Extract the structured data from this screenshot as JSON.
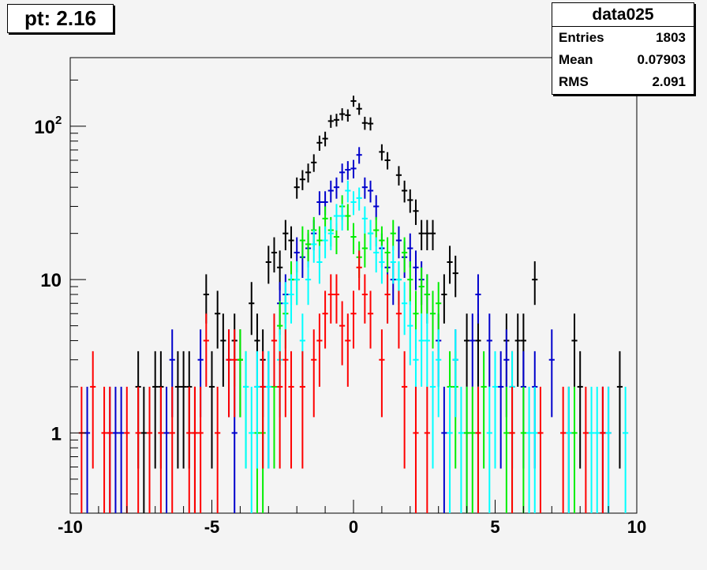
{
  "title": "pt: 2.16",
  "stats": {
    "name": "data025",
    "rows": [
      {
        "label": "Entries",
        "value": "1803"
      },
      {
        "label": "Mean",
        "value": "0.07903"
      },
      {
        "label": "RMS",
        "value": "2.091"
      }
    ]
  },
  "chart_data": {
    "type": "scatter",
    "title": "pt: 2.16",
    "xlabel": "",
    "ylabel": "",
    "xlim": [
      -10,
      10
    ],
    "ylim": [
      0.3,
      280
    ],
    "yscale": "log",
    "x_ticks": [
      "-10",
      "-5",
      "0",
      "5",
      "10"
    ],
    "y_ticks": [
      "1",
      "10",
      "10^2"
    ],
    "series": [
      {
        "color": "#000000",
        "points": [
          [
            -7.6,
            2
          ],
          [
            -7.4,
            1
          ],
          [
            -7.0,
            2
          ],
          [
            -6.8,
            2
          ],
          [
            -6.2,
            2
          ],
          [
            -6.0,
            2
          ],
          [
            -5.8,
            2
          ],
          [
            -5.6,
            1
          ],
          [
            -5.2,
            8
          ],
          [
            -5.0,
            2
          ],
          [
            -4.8,
            6
          ],
          [
            -4.6,
            4
          ],
          [
            -4.2,
            4
          ],
          [
            -4.0,
            3
          ],
          [
            -3.6,
            7
          ],
          [
            -3.4,
            4
          ],
          [
            -3.2,
            3
          ],
          [
            -3.0,
            13
          ],
          [
            -2.8,
            15
          ],
          [
            -2.6,
            12
          ],
          [
            -2.4,
            20
          ],
          [
            -2.2,
            18
          ],
          [
            -2.0,
            40
          ],
          [
            -1.8,
            45
          ],
          [
            -1.6,
            50
          ],
          [
            -1.4,
            58
          ],
          [
            -1.2,
            78
          ],
          [
            -1.0,
            83
          ],
          [
            -0.8,
            108
          ],
          [
            -0.6,
            110
          ],
          [
            -0.4,
            120
          ],
          [
            -0.2,
            118
          ],
          [
            0.0,
            146
          ],
          [
            0.2,
            130
          ],
          [
            0.4,
            105
          ],
          [
            0.6,
            104
          ],
          [
            1.0,
            68
          ],
          [
            1.2,
            60
          ],
          [
            1.6,
            48
          ],
          [
            1.8,
            38
          ],
          [
            2.0,
            33
          ],
          [
            2.2,
            28
          ],
          [
            2.4,
            20
          ],
          [
            2.6,
            20
          ],
          [
            2.8,
            20
          ],
          [
            3.2,
            8
          ],
          [
            3.4,
            13
          ],
          [
            3.6,
            11
          ],
          [
            4.0,
            4
          ],
          [
            4.4,
            4
          ],
          [
            5.4,
            4
          ],
          [
            5.6,
            2
          ],
          [
            5.8,
            4
          ],
          [
            6.0,
            4
          ],
          [
            6.4,
            10
          ],
          [
            7.8,
            4
          ],
          [
            7.6,
            1
          ],
          [
            8.0,
            2
          ],
          [
            8.8,
            1
          ],
          [
            9.4,
            2
          ]
        ]
      },
      {
        "color": "#0000cc",
        "points": [
          [
            -9.4,
            1
          ],
          [
            -8.6,
            1
          ],
          [
            -8.4,
            1
          ],
          [
            -8.2,
            1
          ],
          [
            -6.6,
            1
          ],
          [
            -6.4,
            3
          ],
          [
            -5.4,
            3
          ],
          [
            -4.4,
            3
          ],
          [
            -4.2,
            1
          ],
          [
            -3.4,
            2
          ],
          [
            -3.2,
            2
          ],
          [
            -3.0,
            2
          ],
          [
            -2.6,
            7
          ],
          [
            -2.4,
            8
          ],
          [
            -2.2,
            10
          ],
          [
            -2.0,
            15
          ],
          [
            -1.8,
            14
          ],
          [
            -1.6,
            16
          ],
          [
            -1.4,
            20
          ],
          [
            -1.2,
            32
          ],
          [
            -1.0,
            32
          ],
          [
            -0.8,
            38
          ],
          [
            -0.6,
            40
          ],
          [
            -0.4,
            50
          ],
          [
            -0.2,
            52
          ],
          [
            0.0,
            53
          ],
          [
            0.2,
            65
          ],
          [
            0.4,
            40
          ],
          [
            0.6,
            38
          ],
          [
            0.8,
            30
          ],
          [
            1.0,
            16
          ],
          [
            1.2,
            12
          ],
          [
            1.4,
            10
          ],
          [
            1.6,
            18
          ],
          [
            1.8,
            14
          ],
          [
            2.0,
            16
          ],
          [
            2.2,
            12
          ],
          [
            2.4,
            10
          ],
          [
            2.6,
            8
          ],
          [
            3.0,
            4
          ],
          [
            3.2,
            1
          ],
          [
            3.6,
            3
          ],
          [
            4.0,
            1
          ],
          [
            4.2,
            4
          ],
          [
            4.4,
            8
          ],
          [
            4.8,
            4
          ],
          [
            5.2,
            2
          ],
          [
            5.4,
            3
          ],
          [
            6.0,
            2
          ],
          [
            6.4,
            2
          ],
          [
            7.0,
            3
          ],
          [
            8.8,
            1
          ],
          [
            9.0,
            1
          ]
        ]
      },
      {
        "color": "#00ee00",
        "points": [
          [
            -4.0,
            3
          ],
          [
            -3.8,
            2
          ],
          [
            -3.4,
            1
          ],
          [
            -3.2,
            1
          ],
          [
            -2.8,
            2
          ],
          [
            -2.6,
            5
          ],
          [
            -2.4,
            6
          ],
          [
            -2.2,
            10
          ],
          [
            -2.0,
            10
          ],
          [
            -1.8,
            18
          ],
          [
            -1.6,
            17
          ],
          [
            -1.4,
            21
          ],
          [
            -1.2,
            18
          ],
          [
            -1.0,
            25
          ],
          [
            -0.8,
            21
          ],
          [
            -0.6,
            19
          ],
          [
            -0.4,
            30
          ],
          [
            -0.2,
            26
          ],
          [
            0.0,
            19
          ],
          [
            0.2,
            14
          ],
          [
            0.4,
            16
          ],
          [
            0.6,
            20
          ],
          [
            0.8,
            21
          ],
          [
            1.0,
            18
          ],
          [
            1.2,
            15
          ],
          [
            1.4,
            20
          ],
          [
            1.6,
            10
          ],
          [
            1.8,
            15
          ],
          [
            2.0,
            10
          ],
          [
            2.2,
            6
          ],
          [
            2.4,
            9
          ],
          [
            2.6,
            8
          ],
          [
            2.8,
            6
          ],
          [
            3.0,
            7
          ],
          [
            3.4,
            2
          ],
          [
            3.6,
            2
          ],
          [
            4.0,
            1
          ],
          [
            4.2,
            1
          ],
          [
            4.6,
            2
          ],
          [
            5.4,
            1
          ],
          [
            5.6,
            1
          ],
          [
            6.0,
            1
          ],
          [
            7.8,
            1
          ]
        ]
      },
      {
        "color": "#00ffff",
        "points": [
          [
            -3.8,
            2
          ],
          [
            -3.6,
            1
          ],
          [
            -3.4,
            2
          ],
          [
            -3.0,
            2
          ],
          [
            -2.8,
            4
          ],
          [
            -2.6,
            3
          ],
          [
            -2.4,
            7
          ],
          [
            -2.2,
            8
          ],
          [
            -2.0,
            10
          ],
          [
            -1.8,
            4
          ],
          [
            -1.6,
            10
          ],
          [
            -1.4,
            17
          ],
          [
            -1.2,
            13
          ],
          [
            -1.0,
            18
          ],
          [
            -0.8,
            20
          ],
          [
            -0.6,
            26
          ],
          [
            -0.4,
            26
          ],
          [
            -0.2,
            38
          ],
          [
            0.0,
            32
          ],
          [
            0.2,
            34
          ],
          [
            0.4,
            25
          ],
          [
            0.6,
            20
          ],
          [
            0.8,
            15
          ],
          [
            1.0,
            13
          ],
          [
            1.2,
            8
          ],
          [
            1.4,
            13
          ],
          [
            1.6,
            10
          ],
          [
            1.8,
            7
          ],
          [
            2.0,
            5
          ],
          [
            2.2,
            3
          ],
          [
            2.4,
            4
          ],
          [
            2.6,
            4
          ],
          [
            2.8,
            2
          ],
          [
            3.0,
            3
          ],
          [
            3.4,
            1
          ],
          [
            3.6,
            3
          ],
          [
            3.8,
            1
          ],
          [
            4.4,
            1
          ],
          [
            4.8,
            1
          ],
          [
            5.0,
            2
          ],
          [
            5.6,
            2
          ],
          [
            6.2,
            1
          ],
          [
            6.4,
            1
          ],
          [
            7.6,
            1
          ],
          [
            8.4,
            1
          ],
          [
            8.6,
            1
          ],
          [
            9.0,
            1
          ],
          [
            9.6,
            1
          ]
        ]
      },
      {
        "color": "#ff0000",
        "points": [
          [
            -9.6,
            1
          ],
          [
            -9.2,
            2
          ],
          [
            -8.8,
            1
          ],
          [
            -8.6,
            1
          ],
          [
            -8.0,
            1
          ],
          [
            -7.6,
            1
          ],
          [
            -7.2,
            1
          ],
          [
            -6.8,
            1
          ],
          [
            -6.4,
            1
          ],
          [
            -5.8,
            1
          ],
          [
            -5.6,
            1
          ],
          [
            -5.4,
            1
          ],
          [
            -5.2,
            4
          ],
          [
            -4.8,
            1
          ],
          [
            -4.4,
            3
          ],
          [
            -4.2,
            3
          ],
          [
            -3.2,
            2
          ],
          [
            -2.8,
            4
          ],
          [
            -2.6,
            2
          ],
          [
            -2.4,
            3
          ],
          [
            -2.2,
            2
          ],
          [
            -1.8,
            2
          ],
          [
            -1.4,
            3
          ],
          [
            -1.2,
            4
          ],
          [
            -1.0,
            6
          ],
          [
            -0.8,
            8
          ],
          [
            -0.6,
            8
          ],
          [
            -0.4,
            5
          ],
          [
            -0.2,
            4
          ],
          [
            0.0,
            6
          ],
          [
            0.2,
            12
          ],
          [
            0.4,
            8
          ],
          [
            0.6,
            6
          ],
          [
            1.0,
            3
          ],
          [
            1.2,
            8
          ],
          [
            1.6,
            6
          ],
          [
            1.8,
            2
          ],
          [
            2.2,
            1
          ],
          [
            2.6,
            1
          ],
          [
            4.4,
            1
          ],
          [
            5.6,
            1
          ],
          [
            6.6,
            1
          ],
          [
            7.4,
            1
          ],
          [
            8.2,
            1
          ],
          [
            8.8,
            1
          ]
        ]
      }
    ]
  }
}
